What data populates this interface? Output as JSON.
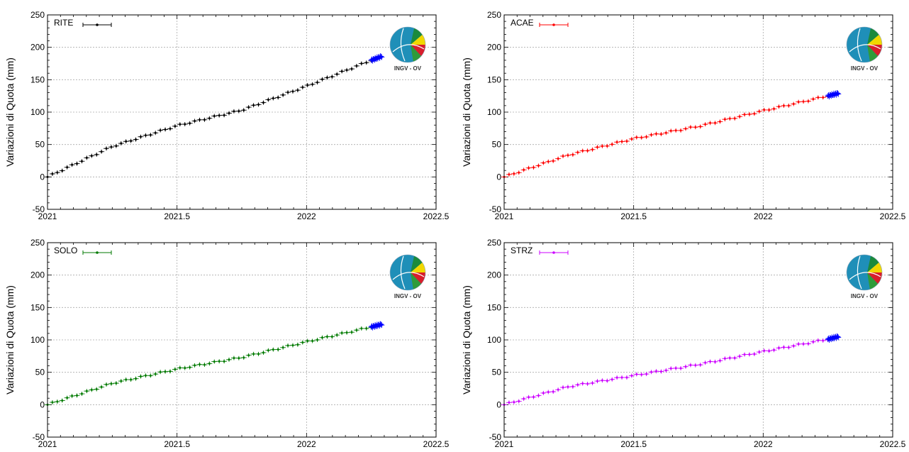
{
  "logo_text": "INGV - OV",
  "chart_data": [
    {
      "type": "scatter",
      "station": "RITE",
      "ylabel": "Variazioni di Quota (mm)",
      "xlim": [
        2021,
        2022.5
      ],
      "ylim": [
        -50,
        250
      ],
      "xticks": [
        2021,
        2021.5,
        2022,
        2022.5
      ],
      "yticks": [
        -50,
        0,
        50,
        100,
        150,
        200,
        250
      ],
      "grid": true,
      "legend": "top-left",
      "color": "#000000",
      "recent_color": "#0000ff",
      "trend": [
        [
          2021.0,
          0
        ],
        [
          2021.25,
          47
        ],
        [
          2021.5,
          79
        ],
        [
          2021.75,
          103
        ],
        [
          2022.0,
          140
        ],
        [
          2022.25,
          180
        ]
      ],
      "recent": [
        [
          2022.25,
          180
        ],
        [
          2022.29,
          186
        ]
      ]
    },
    {
      "type": "scatter",
      "station": "ACAE",
      "ylabel": "Variazioni di Quota (mm)",
      "xlim": [
        2021,
        2022.5
      ],
      "ylim": [
        -50,
        250
      ],
      "xticks": [
        2021,
        2021.5,
        2022,
        2022.5
      ],
      "yticks": [
        -50,
        0,
        50,
        100,
        150,
        200,
        250
      ],
      "grid": true,
      "legend": "top-left",
      "color": "#ff0000",
      "recent_color": "#0000ff",
      "trend": [
        [
          2021.0,
          0
        ],
        [
          2021.25,
          34
        ],
        [
          2021.5,
          59
        ],
        [
          2021.75,
          78
        ],
        [
          2022.0,
          102
        ],
        [
          2022.25,
          125
        ]
      ],
      "recent": [
        [
          2022.25,
          125
        ],
        [
          2022.29,
          129
        ]
      ]
    },
    {
      "type": "scatter",
      "station": "SOLO",
      "ylabel": "Variazioni di Quota (mm)",
      "xlim": [
        2021,
        2022.5
      ],
      "ylim": [
        -50,
        250
      ],
      "xticks": [
        2021,
        2021.5,
        2022,
        2022.5
      ],
      "yticks": [
        -50,
        0,
        50,
        100,
        150,
        200,
        250
      ],
      "grid": true,
      "legend": "top-left",
      "color": "#007a00",
      "recent_color": "#0000ff",
      "trend": [
        [
          2021.0,
          0
        ],
        [
          2021.25,
          33
        ],
        [
          2021.5,
          55
        ],
        [
          2021.75,
          73
        ],
        [
          2022.0,
          97
        ],
        [
          2022.25,
          120
        ]
      ],
      "recent": [
        [
          2022.25,
          120
        ],
        [
          2022.29,
          124
        ]
      ]
    },
    {
      "type": "scatter",
      "station": "STRZ",
      "ylabel": "Variazioni di Quota (mm)",
      "xlim": [
        2021,
        2022.5
      ],
      "ylim": [
        -50,
        250
      ],
      "xticks": [
        2021,
        2021.5,
        2022,
        2022.5
      ],
      "yticks": [
        -50,
        0,
        50,
        100,
        150,
        200,
        250
      ],
      "grid": true,
      "legend": "top-left",
      "color": "#cc00ff",
      "recent_color": "#0000ff",
      "trend": [
        [
          2021.0,
          0
        ],
        [
          2021.25,
          28
        ],
        [
          2021.5,
          45
        ],
        [
          2021.75,
          62
        ],
        [
          2022.0,
          82
        ],
        [
          2022.25,
          101
        ]
      ],
      "recent": [
        [
          2022.25,
          101
        ],
        [
          2022.29,
          105
        ]
      ]
    }
  ]
}
